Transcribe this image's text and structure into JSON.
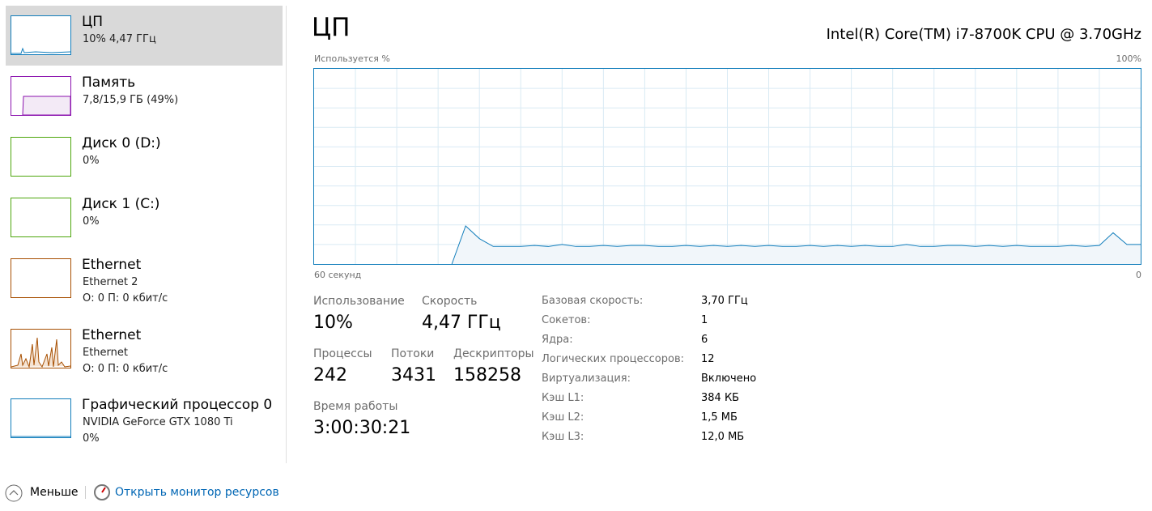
{
  "sidebar": [
    {
      "title": "ЦП",
      "lines": [
        "10% 4,47 ГГц"
      ]
    },
    {
      "title": "Память",
      "lines": [
        "7,8/15,9 ГБ (49%)"
      ]
    },
    {
      "title": "Диск 0 (D:)",
      "lines": [
        "0%"
      ]
    },
    {
      "title": "Диск 1 (C:)",
      "lines": [
        "0%"
      ]
    },
    {
      "title": "Ethernet",
      "lines": [
        "Ethernet 2",
        "О: 0 П: 0 кбит/с"
      ]
    },
    {
      "title": "Ethernet",
      "lines": [
        "Ethernet",
        "О: 0 П: 0 кбит/с"
      ]
    },
    {
      "title": "Графический процессор 0",
      "lines": [
        "NVIDIA GeForce GTX 1080 Ti",
        "0%"
      ]
    }
  ],
  "header": {
    "title": "ЦП",
    "cpu_name": "Intel(R) Core(TM) i7-8700K CPU @ 3.70GHz"
  },
  "cpu_graph": {
    "type": "line",
    "y_label": "Используется %",
    "y_max_label": "100%",
    "x_start_label": "60 секунд",
    "x_end_label": "0",
    "ylim": [
      0,
      100
    ],
    "color": "#117dbb",
    "values": [
      null,
      null,
      null,
      null,
      null,
      null,
      null,
      null,
      null,
      null,
      0,
      19.5,
      13,
      9,
      9,
      9,
      9.5,
      9,
      10,
      9,
      9,
      9.5,
      9,
      9.5,
      9.5,
      9,
      9,
      9.5,
      9,
      9.5,
      9,
      9.5,
      9,
      9.5,
      9,
      9,
      9.5,
      9,
      9.5,
      9,
      9.5,
      9,
      9,
      10,
      9,
      9,
      9.5,
      9.5,
      9,
      9.5,
      9,
      9.5,
      9,
      9,
      9,
      9.5,
      9,
      9.5,
      16,
      10,
      10
    ]
  },
  "stats": [
    {
      "label": "Использование",
      "value": "10%"
    },
    {
      "label": "Скорость",
      "value": "4,47 ГГц"
    },
    {
      "label": "Процессы",
      "value": "242"
    },
    {
      "label": "Потоки",
      "value": "3431"
    },
    {
      "label": "Дескрипторы",
      "value": "158258"
    },
    {
      "label": "Время работы",
      "value": "3:00:30:21"
    }
  ],
  "details": [
    [
      "Базовая скорость:",
      "3,70 ГГц"
    ],
    [
      "Сокетов:",
      "1"
    ],
    [
      "Ядра:",
      "6"
    ],
    [
      "Логических процессоров:",
      "12"
    ],
    [
      "Виртуализация:",
      "Включено"
    ],
    [
      "Кэш L1:",
      "384 КБ"
    ],
    [
      "Кэш L2:",
      "1,5 МБ"
    ],
    [
      "Кэш L3:",
      "12,0 МБ"
    ]
  ],
  "footer": {
    "less": "Меньше",
    "link": "Открыть монитор ресурсов"
  }
}
